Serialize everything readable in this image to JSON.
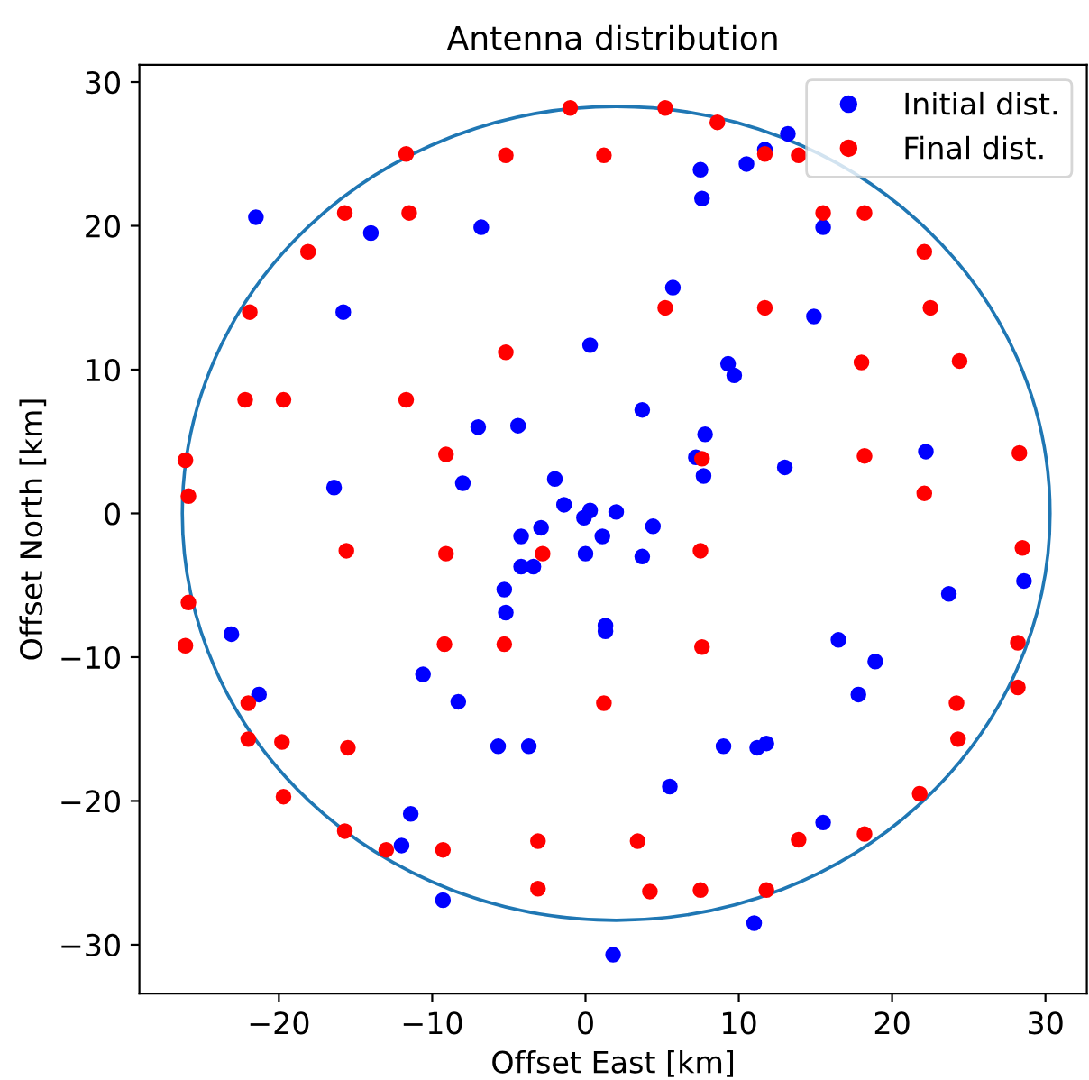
{
  "chart_data": {
    "type": "scatter",
    "title": "Antenna distribution",
    "xlabel": "Offset East [km]",
    "ylabel": "Offset North [km]",
    "xlim": [
      -29.1,
      32.7
    ],
    "ylim": [
      -33.4,
      31.2
    ],
    "xticks": [
      -20,
      -10,
      0,
      10,
      20,
      30
    ],
    "yticks": [
      -30,
      -20,
      -10,
      0,
      10,
      20,
      30
    ],
    "grid": false,
    "legend": "top right",
    "marker": "circle",
    "series": [
      {
        "name": "Initial dist.",
        "color": "#0000ff",
        "x": [
          -21.5,
          -14.0,
          -6.8,
          -15.8,
          0.3,
          -7.0,
          -4.4,
          -16.4,
          -8.0,
          -2.0,
          -1.4,
          0.3,
          -0.1,
          2.0,
          -4.2,
          -2.9,
          1.1,
          -4.2,
          -3.4,
          0.0,
          -5.3,
          -5.2,
          1.3,
          1.3,
          -23.1,
          -10.6,
          -21.3,
          -8.3,
          -5.7,
          -3.7,
          -11.4,
          -12.0,
          -9.3,
          1.8,
          13.2,
          11.7,
          10.5,
          7.5,
          7.6,
          15.5,
          5.7,
          14.9,
          9.3,
          9.7,
          3.7,
          7.8,
          7.2,
          7.7,
          13.0,
          22.2,
          4.4,
          3.7,
          23.7,
          28.6,
          16.5,
          18.9,
          17.8,
          9.0,
          11.2,
          11.8,
          5.5,
          15.5,
          11.0
        ],
        "values": [
          20.6,
          19.5,
          19.9,
          14.0,
          11.7,
          6.0,
          6.1,
          1.8,
          2.1,
          2.4,
          0.6,
          0.2,
          -0.3,
          0.1,
          -1.6,
          -1.0,
          -1.6,
          -3.7,
          -3.7,
          -2.8,
          -5.3,
          -6.9,
          -7.8,
          -8.2,
          -8.4,
          -11.2,
          -12.6,
          -13.1,
          -16.2,
          -16.2,
          -20.9,
          -23.1,
          -26.9,
          -30.7,
          26.4,
          25.3,
          24.3,
          23.9,
          21.9,
          19.9,
          15.7,
          13.7,
          10.4,
          9.6,
          7.2,
          5.5,
          3.9,
          2.6,
          3.2,
          4.3,
          -0.9,
          -3.0,
          -5.6,
          -4.7,
          -8.8,
          -10.3,
          -12.6,
          -16.2,
          -16.3,
          -16.0,
          -19.0,
          -21.5,
          -28.5
        ]
      },
      {
        "name": "Final dist.",
        "color": "#ff0000",
        "x": [
          -1.0,
          -11.7,
          -5.2,
          1.2,
          -15.7,
          -11.5,
          -18.1,
          -21.9,
          -5.2,
          -22.2,
          -19.7,
          -11.7,
          -26.1,
          -25.9,
          -9.1,
          -2.8,
          -15.6,
          -9.1,
          -25.9,
          -26.1,
          -9.2,
          -5.3,
          1.2,
          -22.0,
          -22.0,
          -19.8,
          -15.5,
          -19.7,
          -15.7,
          -13.0,
          -9.3,
          -3.1,
          -3.1,
          5.2,
          8.6,
          11.7,
          13.9,
          15.5,
          18.2,
          22.1,
          5.2,
          11.7,
          22.5,
          18.0,
          24.4,
          7.6,
          18.2,
          28.3,
          22.1,
          7.5,
          28.5,
          7.6,
          28.2,
          28.2,
          24.2,
          24.3,
          21.8,
          3.4,
          13.9,
          18.2,
          4.2,
          7.5,
          11.8
        ],
        "values": [
          28.2,
          25.0,
          24.9,
          24.9,
          20.9,
          20.9,
          18.2,
          14.0,
          11.2,
          7.9,
          7.9,
          7.9,
          3.7,
          1.2,
          4.1,
          -2.8,
          -2.6,
          -2.8,
          -6.2,
          -9.2,
          -9.1,
          -9.1,
          -13.2,
          -13.2,
          -15.7,
          -15.9,
          -16.3,
          -19.7,
          -22.1,
          -23.4,
          -23.4,
          -22.8,
          -26.1,
          28.2,
          27.2,
          25.0,
          24.9,
          20.9,
          20.9,
          18.2,
          14.3,
          14.3,
          14.3,
          10.5,
          10.6,
          3.8,
          4.0,
          4.2,
          1.4,
          -2.6,
          -2.4,
          -9.3,
          -9.0,
          -12.1,
          -13.2,
          -15.7,
          -19.5,
          -22.8,
          -22.7,
          -22.3,
          -26.3,
          -26.2,
          -26.2
        ]
      }
    ]
  }
}
